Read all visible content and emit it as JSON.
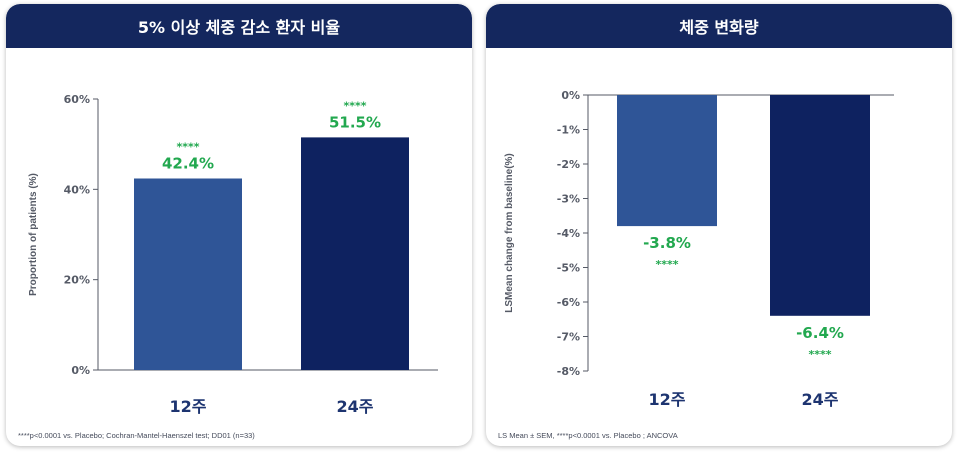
{
  "colors": {
    "header_bg": "#14275e",
    "bar_light": "#2f5597",
    "bar_dark": "#0e2260",
    "label_green": "#22a84f",
    "axis": "#555a66"
  },
  "left_panel": {
    "header": "5% 이상 체중 감소 환자 비율",
    "footnote": "****p<0.0001 vs. Placebo; Cochran-Mantel-Haenszel test; DD01 (n=33)"
  },
  "right_panel": {
    "header": "체중 변화량",
    "footnote": "LS Mean ± SEM, ****p<0.0001 vs. Placebo ; ANCOVA"
  },
  "chart_data": [
    {
      "type": "bar",
      "title": "5% 이상 체중 감소 환자 비율",
      "categories": [
        "12주",
        "24주"
      ],
      "values": [
        42.4,
        51.5
      ],
      "value_labels": [
        "42.4%",
        "51.5%"
      ],
      "significance": [
        "****",
        "****"
      ],
      "bar_colors": [
        "#2f5597",
        "#0e2260"
      ],
      "ylabel": "Proportion of patients (%)",
      "ylim": [
        0,
        60
      ],
      "yticks": [
        0,
        20,
        40,
        60
      ],
      "ytick_labels": [
        "0%",
        "20%",
        "40%",
        "60%"
      ],
      "grid": false
    },
    {
      "type": "bar",
      "title": "체중 변화량",
      "categories": [
        "12주",
        "24주"
      ],
      "values": [
        -3.8,
        -6.4
      ],
      "value_labels": [
        "-3.8%",
        "-6.4%"
      ],
      "significance": [
        "****",
        "****"
      ],
      "bar_colors": [
        "#2f5597",
        "#0e2260"
      ],
      "ylabel": "LSMean change from baseline(%)",
      "ylim": [
        -8,
        0
      ],
      "yticks": [
        0,
        -1,
        -2,
        -3,
        -4,
        -5,
        -6,
        -7,
        -8
      ],
      "ytick_labels": [
        "0%",
        "-1%",
        "-2%",
        "-3%",
        "-4%",
        "-5%",
        "-6%",
        "-7%",
        "-8%"
      ],
      "grid": false
    }
  ]
}
